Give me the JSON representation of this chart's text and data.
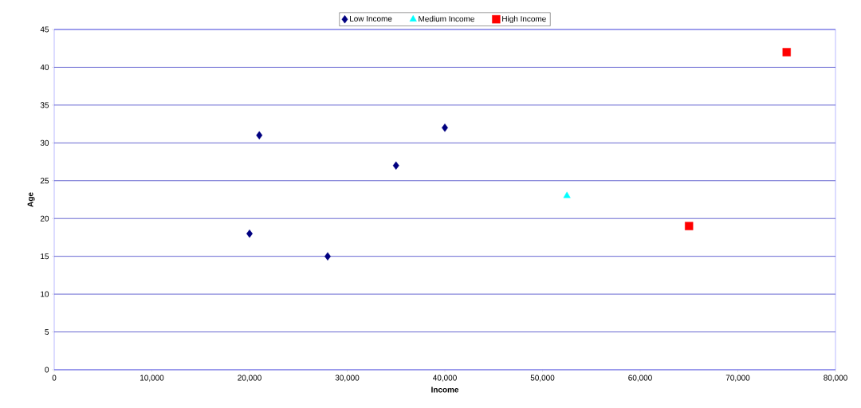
{
  "chart_data": {
    "type": "scatter",
    "xlabel": "Income",
    "ylabel": "Age",
    "series": [
      {
        "name": "Low Income",
        "color": "#000080",
        "marker": "diamond",
        "x": [
          20000,
          21000,
          28000,
          35000,
          40000
        ],
        "values": [
          18,
          31,
          15,
          27,
          32
        ]
      },
      {
        "name": "Medium Income",
        "color": "#00ffff",
        "marker": "triangle",
        "x": [
          52500
        ],
        "values": [
          23
        ]
      },
      {
        "name": "High Income",
        "color": "#ff0000",
        "marker": "square",
        "x": [
          65000,
          75000
        ],
        "values": [
          19,
          42
        ]
      }
    ],
    "xlim": [
      0,
      80000
    ],
    "ylim": [
      0,
      45
    ],
    "xticks": [
      0,
      {
        "value": 10000,
        "label": "10,000"
      },
      {
        "value": 20000,
        "label": "20,000"
      },
      {
        "value": 30000,
        "label": "30,000"
      },
      {
        "value": 40000,
        "label": "40,000"
      },
      {
        "value": 50000,
        "label": "50,000"
      },
      {
        "value": 60000,
        "label": "60,000"
      },
      {
        "value": 70000,
        "label": "70,000"
      },
      {
        "value": 80000,
        "label": "80,000"
      }
    ],
    "yticks": [
      0,
      5,
      10,
      15,
      20,
      25,
      30,
      35,
      40,
      45
    ],
    "grid": "y",
    "legend": "top"
  }
}
